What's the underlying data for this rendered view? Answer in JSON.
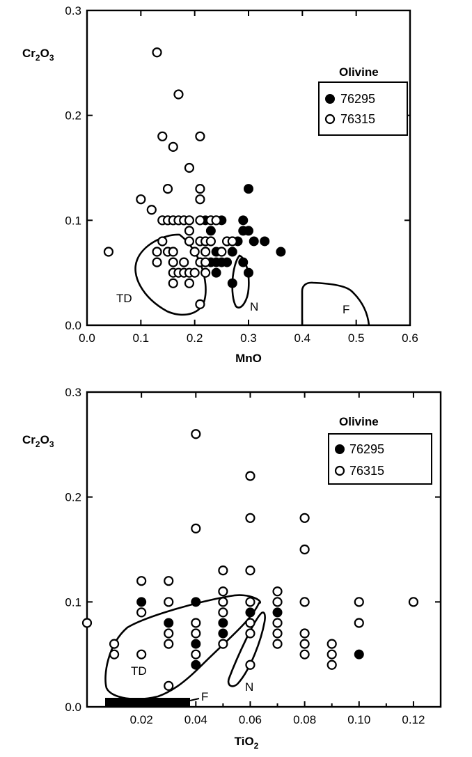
{
  "chart_data": [
    {
      "type": "scatter",
      "xlabel": "MnO",
      "ylabel_main": "Cr",
      "ylabel_sub1": "2",
      "ylabel_mid": "O",
      "ylabel_sub2": "3",
      "xlim": [
        0.0,
        0.6
      ],
      "ylim": [
        0.0,
        0.3
      ],
      "xticks": [
        "0.0",
        "0.1",
        "0.2",
        "0.3",
        "0.4",
        "0.5",
        "0.6"
      ],
      "yticks": [
        "0.0",
        "0.1",
        "0.2",
        "0.3"
      ],
      "legend": {
        "title": "Olivine",
        "position": "top-right",
        "entries": [
          "76295",
          "76315"
        ]
      },
      "region_labels": [
        "TD",
        "N",
        "F"
      ],
      "series": [
        {
          "name": "76295",
          "marker": "filled-circle",
          "points": [
            [
              0.22,
              0.1
            ],
            [
              0.23,
              0.09
            ],
            [
              0.25,
              0.1
            ],
            [
              0.22,
              0.08
            ],
            [
              0.24,
              0.07
            ],
            [
              0.23,
              0.06
            ],
            [
              0.24,
              0.06
            ],
            [
              0.25,
              0.06
            ],
            [
              0.26,
              0.06
            ],
            [
              0.24,
              0.05
            ],
            [
              0.27,
              0.04
            ],
            [
              0.27,
              0.07
            ],
            [
              0.28,
              0.08
            ],
            [
              0.29,
              0.09
            ],
            [
              0.29,
              0.1
            ],
            [
              0.3,
              0.09
            ],
            [
              0.31,
              0.08
            ],
            [
              0.3,
              0.13
            ],
            [
              0.29,
              0.06
            ],
            [
              0.3,
              0.05
            ],
            [
              0.33,
              0.08
            ],
            [
              0.36,
              0.07
            ]
          ]
        },
        {
          "name": "76315",
          "marker": "open-circle",
          "points": [
            [
              0.04,
              0.07
            ],
            [
              0.1,
              0.12
            ],
            [
              0.12,
              0.11
            ],
            [
              0.13,
              0.26
            ],
            [
              0.17,
              0.22
            ],
            [
              0.14,
              0.18
            ],
            [
              0.16,
              0.17
            ],
            [
              0.21,
              0.18
            ],
            [
              0.19,
              0.15
            ],
            [
              0.15,
              0.13
            ],
            [
              0.21,
              0.13
            ],
            [
              0.21,
              0.12
            ],
            [
              0.14,
              0.1
            ],
            [
              0.15,
              0.1
            ],
            [
              0.16,
              0.1
            ],
            [
              0.17,
              0.1
            ],
            [
              0.18,
              0.1
            ],
            [
              0.19,
              0.1
            ],
            [
              0.21,
              0.1
            ],
            [
              0.23,
              0.1
            ],
            [
              0.24,
              0.1
            ],
            [
              0.14,
              0.08
            ],
            [
              0.19,
              0.08
            ],
            [
              0.21,
              0.08
            ],
            [
              0.22,
              0.08
            ],
            [
              0.23,
              0.08
            ],
            [
              0.13,
              0.07
            ],
            [
              0.15,
              0.07
            ],
            [
              0.16,
              0.07
            ],
            [
              0.2,
              0.07
            ],
            [
              0.22,
              0.07
            ],
            [
              0.25,
              0.07
            ],
            [
              0.13,
              0.06
            ],
            [
              0.16,
              0.06
            ],
            [
              0.18,
              0.06
            ],
            [
              0.21,
              0.06
            ],
            [
              0.22,
              0.06
            ],
            [
              0.26,
              0.08
            ],
            [
              0.16,
              0.05
            ],
            [
              0.17,
              0.05
            ],
            [
              0.18,
              0.05
            ],
            [
              0.19,
              0.05
            ],
            [
              0.2,
              0.05
            ],
            [
              0.22,
              0.05
            ],
            [
              0.16,
              0.04
            ],
            [
              0.19,
              0.04
            ],
            [
              0.21,
              0.02
            ],
            [
              0.19,
              0.09
            ],
            [
              0.27,
              0.08
            ]
          ]
        }
      ]
    },
    {
      "type": "scatter",
      "xlabel": "TiO",
      "xlabel_sub": "2",
      "ylabel_main": "Cr",
      "ylabel_sub1": "2",
      "ylabel_mid": "O",
      "ylabel_sub2": "3",
      "xlim": [
        0.0,
        0.13
      ],
      "ylim": [
        0.0,
        0.3
      ],
      "xticks": [
        "0.02",
        "0.04",
        "0.06",
        "0.08",
        "0.10",
        "0.12"
      ],
      "yticks": [
        "0.0",
        "0.1",
        "0.2",
        "0.3"
      ],
      "legend": {
        "title": "Olivine",
        "position": "top-right",
        "entries": [
          "76295",
          "76315"
        ]
      },
      "region_labels": [
        "TD",
        "N",
        "F"
      ],
      "series": [
        {
          "name": "76295",
          "marker": "filled-circle",
          "points": [
            [
              0.02,
              0.1
            ],
            [
              0.03,
              0.08
            ],
            [
              0.04,
              0.1
            ],
            [
              0.04,
              0.06
            ],
            [
              0.04,
              0.04
            ],
            [
              0.05,
              0.08
            ],
            [
              0.05,
              0.07
            ],
            [
              0.06,
              0.09
            ],
            [
              0.07,
              0.09
            ],
            [
              0.1,
              0.05
            ]
          ]
        },
        {
          "name": "76315",
          "marker": "open-circle",
          "points": [
            [
              0.0,
              0.08
            ],
            [
              0.01,
              0.06
            ],
            [
              0.01,
              0.05
            ],
            [
              0.02,
              0.12
            ],
            [
              0.02,
              0.09
            ],
            [
              0.02,
              0.05
            ],
            [
              0.03,
              0.12
            ],
            [
              0.03,
              0.1
            ],
            [
              0.03,
              0.07
            ],
            [
              0.03,
              0.06
            ],
            [
              0.03,
              0.02
            ],
            [
              0.04,
              0.26
            ],
            [
              0.04,
              0.17
            ],
            [
              0.04,
              0.08
            ],
            [
              0.04,
              0.07
            ],
            [
              0.04,
              0.05
            ],
            [
              0.05,
              0.13
            ],
            [
              0.05,
              0.11
            ],
            [
              0.05,
              0.1
            ],
            [
              0.05,
              0.09
            ],
            [
              0.05,
              0.06
            ],
            [
              0.06,
              0.22
            ],
            [
              0.06,
              0.18
            ],
            [
              0.06,
              0.13
            ],
            [
              0.06,
              0.1
            ],
            [
              0.06,
              0.08
            ],
            [
              0.06,
              0.07
            ],
            [
              0.06,
              0.04
            ],
            [
              0.07,
              0.11
            ],
            [
              0.07,
              0.1
            ],
            [
              0.07,
              0.08
            ],
            [
              0.07,
              0.07
            ],
            [
              0.07,
              0.06
            ],
            [
              0.08,
              0.18
            ],
            [
              0.08,
              0.15
            ],
            [
              0.08,
              0.1
            ],
            [
              0.08,
              0.07
            ],
            [
              0.08,
              0.06
            ],
            [
              0.08,
              0.05
            ],
            [
              0.09,
              0.06
            ],
            [
              0.09,
              0.05
            ],
            [
              0.09,
              0.04
            ],
            [
              0.1,
              0.1
            ],
            [
              0.1,
              0.08
            ],
            [
              0.12,
              0.1
            ]
          ]
        }
      ]
    }
  ]
}
